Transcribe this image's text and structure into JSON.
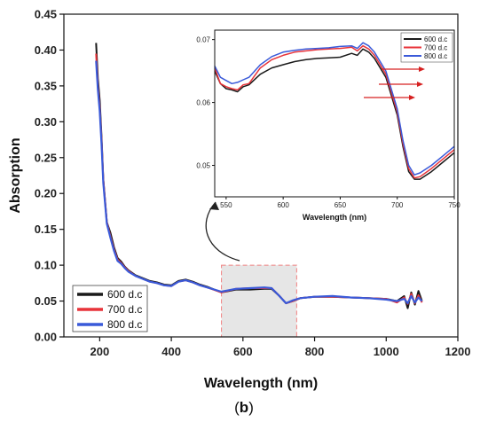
{
  "figure": {
    "panel_label_open": "(",
    "panel_label_letter": "b",
    "panel_label_close": ")"
  },
  "colors": {
    "s600": "#1a1a1a",
    "s700": "#e8333a",
    "s800": "#3a5ad9",
    "highlight_fill": "#e6e6e6",
    "highlight_border": "#f08080",
    "arrow": "#d62020"
  },
  "chart_data": [
    {
      "id": "main",
      "type": "line",
      "xlabel": "Wavelength (nm)",
      "ylabel": "Absorption",
      "xlim": [
        100,
        1200
      ],
      "ylim": [
        0.0,
        0.45
      ],
      "xticks": [
        200,
        400,
        600,
        800,
        1000,
        1200
      ],
      "yticks": [
        0.0,
        0.05,
        0.1,
        0.15,
        0.2,
        0.25,
        0.3,
        0.35,
        0.4,
        0.45
      ],
      "legend_position": "bottom-left",
      "highlight_region": {
        "x": [
          540,
          750
        ],
        "y": [
          0.0,
          0.1
        ]
      },
      "series": [
        {
          "name": "600 d.c",
          "color_key": "s600",
          "x": [
            190,
            195,
            200,
            205,
            210,
            220,
            230,
            240,
            250,
            260,
            270,
            280,
            300,
            320,
            340,
            360,
            380,
            400,
            420,
            440,
            460,
            480,
            500,
            540,
            580,
            620,
            660,
            680,
            700,
            720,
            740,
            760,
            800,
            850,
            900,
            950,
            1000,
            1030,
            1050,
            1060,
            1070,
            1080,
            1090,
            1100
          ],
          "y": [
            0.41,
            0.36,
            0.33,
            0.28,
            0.22,
            0.16,
            0.145,
            0.125,
            0.11,
            0.105,
            0.098,
            0.093,
            0.086,
            0.082,
            0.078,
            0.076,
            0.073,
            0.072,
            0.078,
            0.08,
            0.077,
            0.073,
            0.07,
            0.062,
            0.066,
            0.066,
            0.067,
            0.067,
            0.058,
            0.047,
            0.05,
            0.054,
            0.056,
            0.056,
            0.055,
            0.054,
            0.053,
            0.05,
            0.057,
            0.04,
            0.062,
            0.045,
            0.064,
            0.05
          ]
        },
        {
          "name": "700 d.c",
          "color_key": "s700",
          "x": [
            190,
            195,
            200,
            205,
            210,
            220,
            230,
            240,
            250,
            260,
            270,
            280,
            300,
            320,
            340,
            360,
            380,
            400,
            420,
            440,
            460,
            480,
            500,
            540,
            580,
            620,
            660,
            680,
            700,
            720,
            740,
            760,
            800,
            850,
            900,
            950,
            1000,
            1030,
            1050,
            1060,
            1070,
            1080,
            1090,
            1100
          ],
          "y": [
            0.395,
            0.35,
            0.32,
            0.275,
            0.22,
            0.16,
            0.14,
            0.122,
            0.108,
            0.103,
            0.097,
            0.092,
            0.085,
            0.081,
            0.077,
            0.075,
            0.072,
            0.071,
            0.077,
            0.079,
            0.076,
            0.072,
            0.069,
            0.062,
            0.067,
            0.068,
            0.068,
            0.068,
            0.058,
            0.047,
            0.05,
            0.054,
            0.056,
            0.056,
            0.055,
            0.054,
            0.053,
            0.048,
            0.055,
            0.046,
            0.06,
            0.047,
            0.058,
            0.048
          ]
        },
        {
          "name": "800 d.c",
          "color_key": "s800",
          "x": [
            190,
            195,
            200,
            205,
            210,
            220,
            230,
            240,
            250,
            260,
            270,
            280,
            300,
            320,
            340,
            360,
            380,
            400,
            420,
            440,
            460,
            480,
            500,
            540,
            580,
            620,
            660,
            680,
            700,
            720,
            740,
            760,
            800,
            850,
            900,
            950,
            1000,
            1030,
            1050,
            1060,
            1070,
            1080,
            1090,
            1100
          ],
          "y": [
            0.385,
            0.345,
            0.315,
            0.27,
            0.215,
            0.158,
            0.138,
            0.12,
            0.106,
            0.102,
            0.096,
            0.091,
            0.085,
            0.081,
            0.077,
            0.075,
            0.072,
            0.071,
            0.077,
            0.079,
            0.076,
            0.072,
            0.069,
            0.063,
            0.067,
            0.068,
            0.069,
            0.068,
            0.058,
            0.047,
            0.051,
            0.054,
            0.056,
            0.057,
            0.055,
            0.054,
            0.052,
            0.05,
            0.053,
            0.047,
            0.057,
            0.048,
            0.055,
            0.05
          ]
        }
      ]
    },
    {
      "id": "inset",
      "type": "line",
      "xlabel": "Wavelength (nm)",
      "ylabel": "",
      "xlim": [
        540,
        750
      ],
      "ylim": [
        0.045,
        0.0715
      ],
      "xticks": [
        550,
        600,
        650,
        700,
        750
      ],
      "yticks": [
        0.05,
        0.06,
        0.07
      ],
      "ytick_labels": [
        "0.05",
        "0.06",
        "0.07"
      ],
      "legend_position": "top-right",
      "annotation_arrows": 3,
      "series": [
        {
          "name": "600 d.c",
          "color_key": "s600",
          "x": [
            540,
            545,
            550,
            555,
            560,
            565,
            570,
            580,
            590,
            600,
            610,
            620,
            630,
            640,
            650,
            660,
            665,
            670,
            675,
            680,
            690,
            700,
            705,
            710,
            715,
            720,
            730,
            740,
            750
          ],
          "y": [
            0.065,
            0.063,
            0.0622,
            0.062,
            0.0617,
            0.0625,
            0.0628,
            0.0645,
            0.0655,
            0.066,
            0.0665,
            0.0668,
            0.067,
            0.0671,
            0.0672,
            0.0678,
            0.0675,
            0.0685,
            0.068,
            0.067,
            0.064,
            0.058,
            0.053,
            0.049,
            0.0478,
            0.0478,
            0.049,
            0.0505,
            0.052
          ]
        },
        {
          "name": "700 d.c",
          "color_key": "s700",
          "x": [
            540,
            545,
            550,
            555,
            560,
            565,
            570,
            580,
            590,
            600,
            610,
            620,
            630,
            640,
            650,
            660,
            665,
            670,
            675,
            680,
            690,
            700,
            705,
            710,
            715,
            720,
            730,
            740,
            750
          ],
          "y": [
            0.0655,
            0.063,
            0.0625,
            0.0622,
            0.062,
            0.0628,
            0.063,
            0.0655,
            0.0668,
            0.0675,
            0.068,
            0.0682,
            0.0684,
            0.0685,
            0.0686,
            0.0688,
            0.0682,
            0.069,
            0.0685,
            0.0675,
            0.0645,
            0.0585,
            0.0535,
            0.0495,
            0.048,
            0.0482,
            0.0495,
            0.051,
            0.0525
          ]
        },
        {
          "name": "800 d.c",
          "color_key": "s800",
          "x": [
            540,
            545,
            550,
            555,
            560,
            565,
            570,
            580,
            590,
            600,
            610,
            620,
            630,
            640,
            650,
            660,
            665,
            670,
            675,
            680,
            690,
            700,
            705,
            710,
            715,
            720,
            730,
            740,
            750
          ],
          "y": [
            0.0658,
            0.064,
            0.0635,
            0.063,
            0.0632,
            0.0636,
            0.064,
            0.066,
            0.0673,
            0.068,
            0.0683,
            0.0685,
            0.0686,
            0.0687,
            0.0689,
            0.069,
            0.0686,
            0.0695,
            0.069,
            0.068,
            0.065,
            0.059,
            0.054,
            0.05,
            0.0485,
            0.0488,
            0.05,
            0.0515,
            0.053
          ]
        }
      ]
    }
  ]
}
